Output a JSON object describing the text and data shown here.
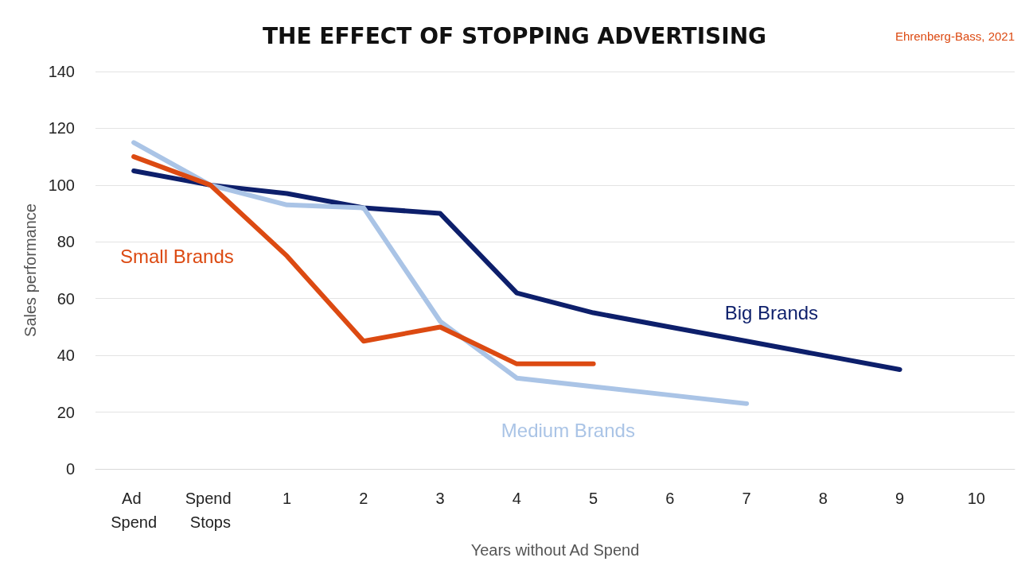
{
  "chart_data": {
    "type": "line",
    "title": "THE EFFECT OF STOPPING ADVERTISING",
    "xlabel": "Years without Ad Spend",
    "ylabel": "Sales performance",
    "annotations": [
      "Ehrenberg-Bass, 2021"
    ],
    "categories": [
      "Ad Spend",
      "Spend Stops",
      "1",
      "2",
      "3",
      "4",
      "5",
      "6",
      "7",
      "8",
      "9",
      "10"
    ],
    "series": [
      {
        "name": "Big Brands",
        "color": "#0d1f6b",
        "values": [
          105,
          100,
          97,
          92,
          90,
          62,
          55,
          50,
          45,
          40,
          35,
          null
        ]
      },
      {
        "name": "Medium Brands",
        "color": "#aac4e6",
        "values": [
          115,
          100,
          93,
          92,
          52,
          32,
          29,
          26,
          23,
          null,
          null,
          null
        ]
      },
      {
        "name": "Small Brands",
        "color": "#dc4a12",
        "values": [
          110,
          100,
          75,
          45,
          50,
          37,
          37,
          null,
          null,
          null,
          null,
          null
        ]
      }
    ],
    "ylim": [
      0,
      140
    ],
    "yticks": [
      0,
      20,
      40,
      60,
      80,
      100,
      120,
      140
    ],
    "grid": "y",
    "legend": false,
    "marker": "none",
    "line_style": "solid"
  }
}
